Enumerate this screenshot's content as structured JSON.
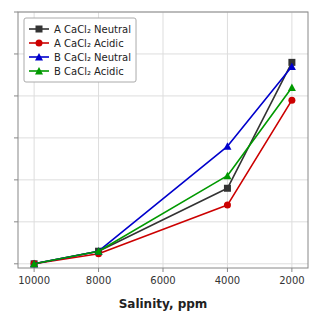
{
  "chart_data": {
    "type": "line",
    "x": [
      10000,
      8000,
      4000,
      2000
    ],
    "series": [
      {
        "name": "A CaCl₂ Neutral",
        "color": "#333333",
        "marker": "square",
        "values": [
          0,
          1.5,
          9.0,
          24.0
        ]
      },
      {
        "name": "A CaCl₂ Acidic",
        "color": "#cc0000",
        "marker": "circle",
        "values": [
          0,
          1.2,
          7.0,
          19.5
        ]
      },
      {
        "name": "B CaCl₂ Neutral",
        "color": "#0000cc",
        "marker": "triangle",
        "values": [
          0,
          1.5,
          14.0,
          23.5
        ]
      },
      {
        "name": "B CaCl₂ Acidic",
        "color": "#009900",
        "marker": "triangle",
        "values": [
          0,
          1.5,
          10.5,
          21.0
        ]
      }
    ],
    "xlabel": "Salinity, ppm",
    "xlim": [
      10500,
      1500
    ],
    "xticks": [
      10000,
      8000,
      6000,
      4000,
      2000
    ],
    "ylim": [
      -0.5,
      30
    ],
    "yticks": [
      0,
      5,
      10,
      15,
      20,
      25,
      30
    ],
    "grid": true,
    "legend": "upper left",
    "tick_labels": "x"
  }
}
